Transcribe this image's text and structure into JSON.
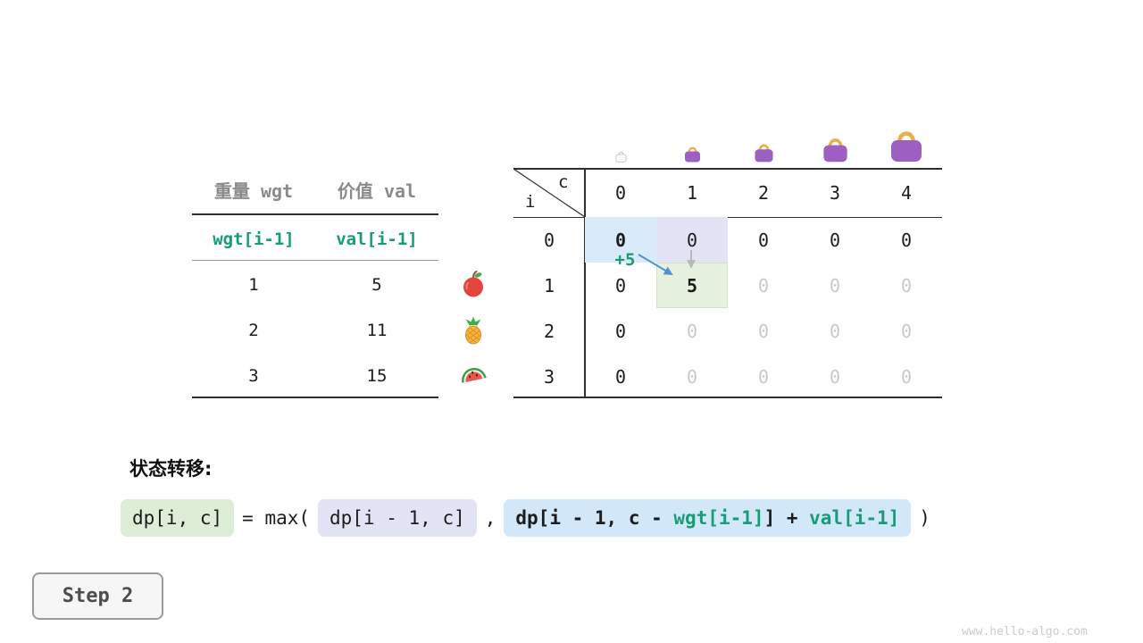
{
  "left_table": {
    "col_headers": [
      "重量 wgt",
      "价值 val"
    ],
    "var_row": [
      "wgt[i-1]",
      "val[i-1]"
    ],
    "rows": [
      {
        "wgt": "1",
        "val": "5",
        "fruit": "apple"
      },
      {
        "wgt": "2",
        "val": "11",
        "fruit": "pineapple"
      },
      {
        "wgt": "3",
        "val": "15",
        "fruit": "watermelon"
      }
    ]
  },
  "dp_table": {
    "corner": {
      "row_var": "i",
      "col_var": "c"
    },
    "col_headers": [
      "0",
      "1",
      "2",
      "3",
      "4"
    ],
    "bags": [
      "bag-empty-icon",
      "bag-small-icon",
      "bag-medium-icon",
      "bag-large-icon",
      "bag-xlarge-icon"
    ],
    "rows": [
      {
        "label": "0",
        "cells": [
          {
            "v": "0",
            "state": "source"
          },
          {
            "v": "0",
            "state": "compare"
          },
          {
            "v": "0"
          },
          {
            "v": "0"
          },
          {
            "v": "0"
          }
        ]
      },
      {
        "label": "1",
        "cells": [
          {
            "v": "0"
          },
          {
            "v": "5",
            "state": "current"
          },
          {
            "v": "0",
            "state": "dim"
          },
          {
            "v": "0",
            "state": "dim"
          },
          {
            "v": "0",
            "state": "dim"
          }
        ]
      },
      {
        "label": "2",
        "cells": [
          {
            "v": "0"
          },
          {
            "v": "0",
            "state": "dim"
          },
          {
            "v": "0",
            "state": "dim"
          },
          {
            "v": "0",
            "state": "dim"
          },
          {
            "v": "0",
            "state": "dim"
          }
        ]
      },
      {
        "label": "3",
        "cells": [
          {
            "v": "0"
          },
          {
            "v": "0",
            "state": "dim"
          },
          {
            "v": "0",
            "state": "dim"
          },
          {
            "v": "0",
            "state": "dim"
          },
          {
            "v": "0",
            "state": "dim"
          }
        ]
      }
    ],
    "annotation": "+5"
  },
  "formula": {
    "label": "状态转移:",
    "lhs": "dp[i, c]",
    "mid": "= max(",
    "opt1": "dp[i - 1, c]",
    "comma": ",",
    "opt2": [
      {
        "t": "dp[i - 1, c - ",
        "green": false
      },
      {
        "t": "wgt[i-1]",
        "green": true
      },
      {
        "t": "] + ",
        "green": false
      },
      {
        "t": "val[i-1]",
        "green": true
      }
    ],
    "close": ")"
  },
  "step": {
    "label": "Step 2"
  },
  "watermark": "www.hello-algo.com",
  "colors": {
    "accent_green": "#189c76",
    "highlight_blue": "#d9eaf8",
    "highlight_lavender": "#e2e4f6",
    "highlight_green": "#e6f2df",
    "bag_purple": "#9d5fc2",
    "bag_handle": "#ecae45",
    "arrow_blue": "#4f93d8"
  }
}
